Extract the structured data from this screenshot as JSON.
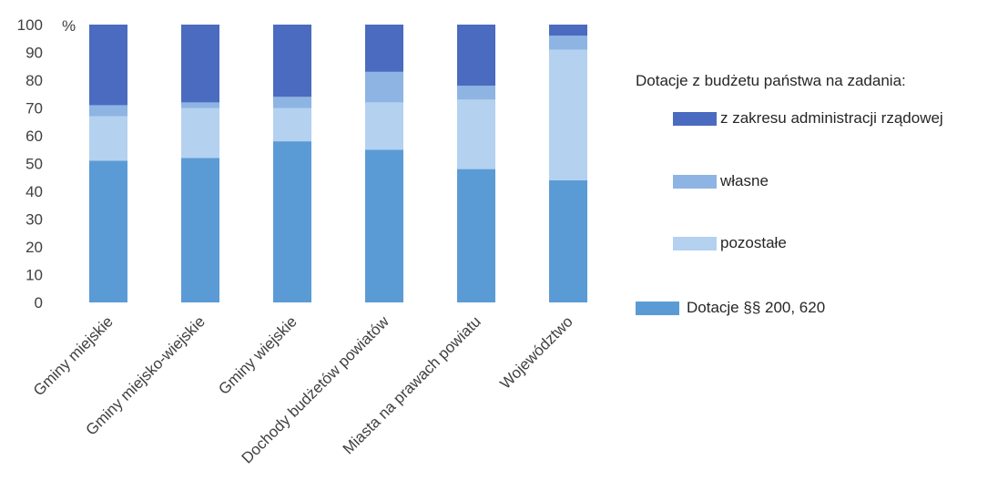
{
  "chart_data": {
    "type": "bar",
    "stacked": true,
    "unit_label": "%",
    "ylim": [
      0,
      100
    ],
    "yticks": [
      0,
      10,
      20,
      30,
      40,
      50,
      60,
      70,
      80,
      90,
      100
    ],
    "categories": [
      "Gminy miejskie",
      "Gminy miejsko-wiejskie",
      "Gminy wiejskie",
      "Dochody budżetów powiatów",
      "Miasta na prawach powiatu",
      "Województwo"
    ],
    "legend_title": "Dotacje z budżetu państwa  na zadania:",
    "series": [
      {
        "name": "Dotacje §§ 200, 620",
        "color": "#5b9bd5",
        "values": [
          51,
          52,
          58,
          55,
          48,
          44
        ]
      },
      {
        "name": "pozostałe",
        "color": "#b4d1f0",
        "values": [
          16,
          18,
          12,
          17,
          25,
          47
        ]
      },
      {
        "name": "własne",
        "color": "#8db4e2",
        "values": [
          4,
          2,
          4,
          11,
          5,
          5
        ]
      },
      {
        "name": "z zakresu administracji rządowej",
        "color": "#4a6bbf",
        "values": [
          29,
          28,
          26,
          17,
          22,
          4
        ]
      }
    ],
    "grid": false,
    "legend_position": "right"
  }
}
